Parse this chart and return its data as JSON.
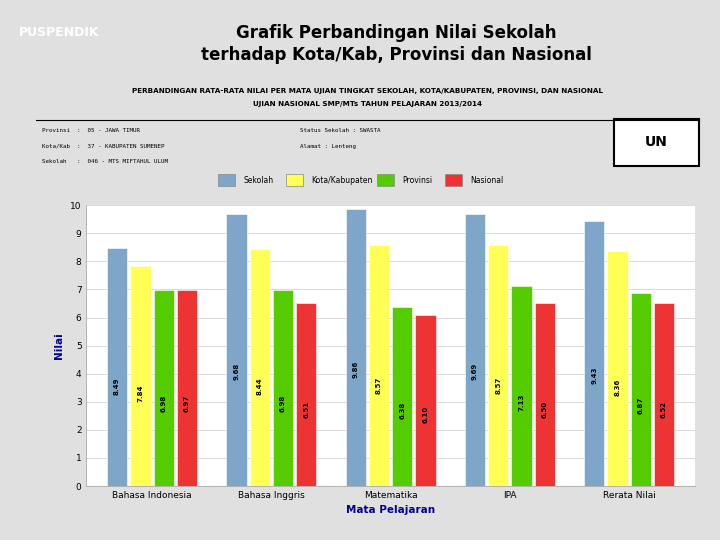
{
  "title_line1": "Grafik Perbandingan Nilai Sekolah",
  "title_line2": "terhadap Kota/Kab, Provinsi dan Nasional",
  "subtitle_line1": "PERBANDINGAN RATA-RATA NILAI PER MATA UJIAN TINGKAT SEKOLAH, KOTA/KABUPATEN, PROVINSI, DAN NASIONAL",
  "subtitle_line2": "UJIAN NASIONAL SMP/MTs TAHUN PELAJARAN 2013/2014",
  "info_left": [
    "Provinsi  :  05 - JAWA TIMUR",
    "Kota/Kab  :  37 - KABUPATEN SUMENEP",
    "Sekolah   :  046 - MTS MIFTAHUL ULUM"
  ],
  "info_right": [
    "Status Sekolah : SWASTA",
    "Alamat : Lenteng"
  ],
  "categories": [
    "Bahasa Indonesia",
    "Bahasa Inggris",
    "Matematika",
    "IPA",
    "Rerata Nilai"
  ],
  "sekolah": [
    8.49,
    9.68,
    9.86,
    9.69,
    9.43
  ],
  "kota": [
    7.84,
    8.44,
    8.57,
    8.57,
    8.36
  ],
  "provinsi": [
    6.98,
    6.98,
    6.38,
    7.13,
    6.87
  ],
  "nasional": [
    6.97,
    6.51,
    6.1,
    6.5,
    6.52
  ],
  "bar_colors": [
    "#7EA6C8",
    "#FFFF55",
    "#55CC00",
    "#EE3333"
  ],
  "legend_labels": [
    "Sekolah",
    "Kota/Kabupaten",
    "Provinsi",
    "Nasional"
  ],
  "xlabel": "Mata Pelajaran",
  "ylabel": "Nilai",
  "ylim": [
    0,
    10
  ],
  "bg_outer": "#E0E0E0",
  "bg_inner": "#FFFFFF",
  "border_color": "#AAAAAA",
  "xlabel_color": "#000099",
  "ylabel_color": "#000099",
  "un_box_text": "UN",
  "logo_color": "#1A3A8A",
  "logo_stripe": "#FFD700"
}
